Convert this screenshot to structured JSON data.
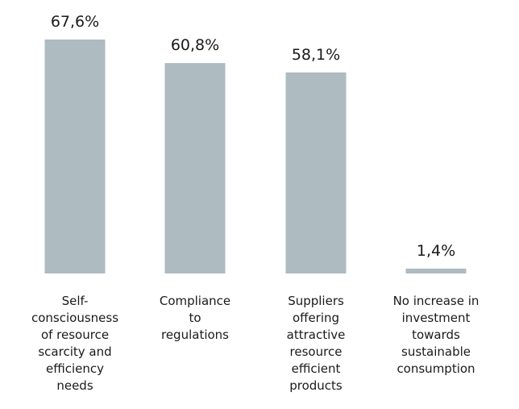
{
  "chart_data": {
    "type": "bar",
    "title": "",
    "xlabel": "",
    "ylabel": "",
    "ylim": [
      0,
      67.6
    ],
    "grid": false,
    "legend": "none",
    "bar_color": "#aebbc1",
    "categories": [
      [
        "Self-",
        "consciousness",
        "of resource",
        "scarcity and",
        "efficiency",
        "needs"
      ],
      [
        "Compliance",
        "to",
        "regulations"
      ],
      [
        "Suppliers",
        "offering",
        "attractive",
        "resource",
        "efficient",
        "products"
      ],
      [
        "No increase in",
        "investment",
        "towards",
        "sustainable",
        "consumption"
      ]
    ],
    "values": [
      67.6,
      60.8,
      58.1,
      1.4
    ],
    "value_labels": [
      "67,6%",
      "60,8%",
      "58,1%",
      "1,4%"
    ]
  }
}
